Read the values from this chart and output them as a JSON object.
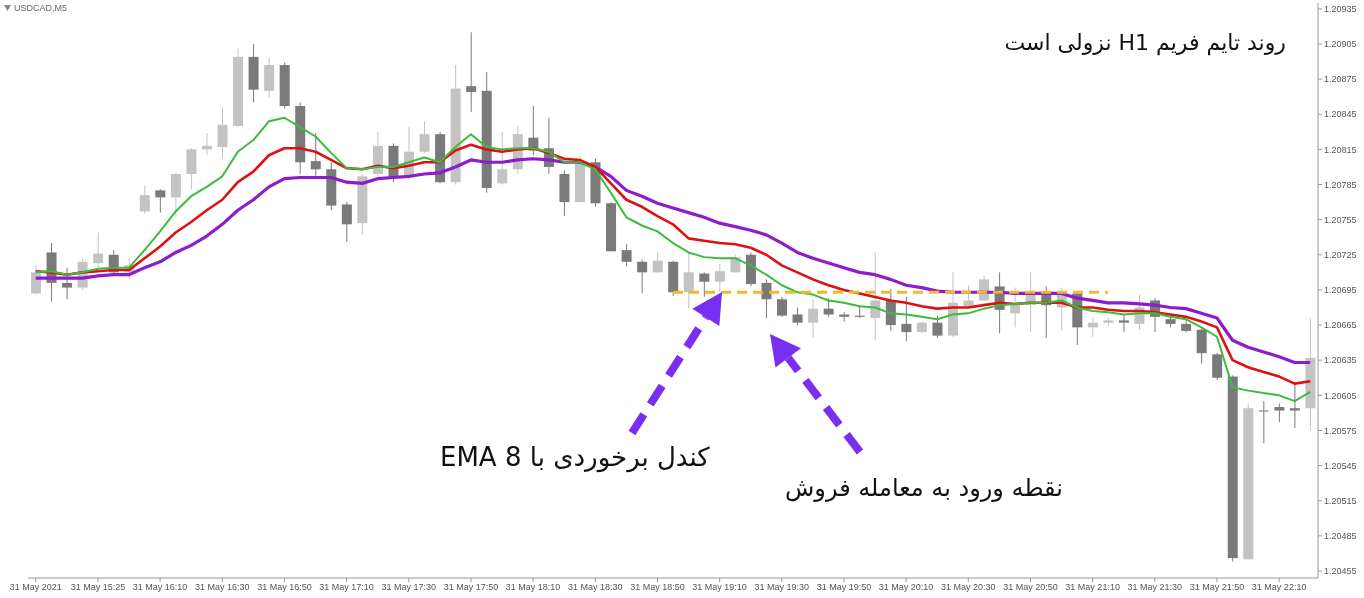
{
  "chart_data": {
    "type": "candlestick",
    "title": "USDCAD,M5",
    "categories": [
      "31 May 2021",
      null,
      null,
      null,
      "31 May 15:25",
      null,
      null,
      null,
      "31 May 16:10",
      null,
      null,
      null,
      "31 May 16:30",
      null,
      null,
      null,
      "31 May 16:50",
      null,
      null,
      null,
      "31 May 17:10",
      null,
      null,
      null,
      "31 May 17:30",
      null,
      null,
      null,
      "31 May 17:50",
      null,
      null,
      null,
      "31 May 18:10",
      null,
      null,
      null,
      "31 May 18:30",
      null,
      null,
      null,
      "31 May 18:50",
      null,
      null,
      null,
      "31 May 19:10",
      null,
      null,
      null,
      "31 May 19:30",
      null,
      null,
      null,
      "31 May 19:50",
      null,
      null,
      null,
      "31 May 20:10",
      null,
      null,
      null,
      "31 May 20:30",
      null,
      null,
      null,
      "31 May 20:50",
      null,
      null,
      null,
      "31 May 21:10",
      null,
      null,
      null,
      "31 May 21:30",
      null,
      null,
      null,
      "31 May 21:50",
      null,
      null,
      null,
      "31 May 22:10",
      null,
      null
    ],
    "ohlc": [
      [
        1.20692,
        1.20716,
        1.20691,
        1.2071
      ],
      [
        1.20727,
        1.20735,
        1.20685,
        1.20701
      ],
      [
        1.20701,
        1.20714,
        1.20687,
        1.20697
      ],
      [
        1.20697,
        1.20722,
        1.20695,
        1.20719
      ],
      [
        1.20718,
        1.20744,
        1.20714,
        1.20726
      ],
      [
        1.20725,
        1.20729,
        1.20708,
        1.2071
      ],
      [
        1.2071,
        1.20722,
        1.20704,
        1.20716
      ],
      [
        1.20762,
        1.20784,
        1.2076,
        1.20776
      ],
      [
        1.2078,
        1.20781,
        1.20761,
        1.20774
      ],
      [
        1.20774,
        1.20795,
        1.20757,
        1.20794
      ],
      [
        1.20794,
        1.20816,
        1.20781,
        1.20815
      ],
      [
        1.20815,
        1.20829,
        1.2081,
        1.20818
      ],
      [
        1.20817,
        1.20851,
        1.20807,
        1.20836
      ],
      [
        1.20835,
        1.20901,
        1.20834,
        1.20894
      ],
      [
        1.20894,
        1.20905,
        1.20855,
        1.20866
      ],
      [
        1.20865,
        1.20893,
        1.20859,
        1.20887
      ],
      [
        1.20887,
        1.20889,
        1.2085,
        1.20852
      ],
      [
        1.20852,
        1.20855,
        1.20794,
        1.20804
      ],
      [
        1.20805,
        1.20829,
        1.20792,
        1.20798
      ],
      [
        1.20798,
        1.20804,
        1.20763,
        1.20767
      ],
      [
        1.20768,
        1.2077,
        1.20736,
        1.20751
      ],
      [
        1.20752,
        1.20794,
        1.20742,
        1.20792
      ],
      [
        1.20794,
        1.2083,
        1.20792,
        1.20818
      ],
      [
        1.20818,
        1.2082,
        1.20787,
        1.20791
      ],
      [
        1.20792,
        1.20834,
        1.20789,
        1.20813
      ],
      [
        1.20813,
        1.20839,
        1.20812,
        1.20828
      ],
      [
        1.20828,
        1.2083,
        1.20786,
        1.20787
      ],
      [
        1.20787,
        1.20887,
        1.20785,
        1.20867
      ],
      [
        1.20869,
        1.20915,
        1.20847,
        1.20864
      ],
      [
        1.20865,
        1.20881,
        1.20778,
        1.20782
      ],
      [
        1.20786,
        1.2083,
        1.20785,
        1.20798
      ],
      [
        1.20798,
        1.20835,
        1.20794,
        1.20828
      ],
      [
        1.20825,
        1.20852,
        1.2081,
        1.20814
      ],
      [
        1.20816,
        1.20842,
        1.20794,
        1.208
      ],
      [
        1.20794,
        1.20797,
        1.20758,
        1.2077
      ],
      [
        1.2077,
        1.20809,
        1.2077,
        1.20804
      ],
      [
        1.20804,
        1.20807,
        1.20766,
        1.20769
      ],
      [
        1.20769,
        1.2077,
        1.20728,
        1.20728
      ],
      [
        1.20729,
        1.20734,
        1.20715,
        1.20719
      ],
      [
        1.20719,
        1.20721,
        1.20692,
        1.2071
      ],
      [
        1.2071,
        1.20727,
        1.2071,
        1.2072
      ],
      [
        1.20719,
        1.2072,
        1.2069,
        1.20693
      ],
      [
        1.20693,
        1.20727,
        1.20679,
        1.2071
      ],
      [
        1.20709,
        1.2071,
        1.20689,
        1.20702
      ],
      [
        1.20702,
        1.20717,
        1.20693,
        1.20711
      ],
      [
        1.2071,
        1.20725,
        1.2071,
        1.20723
      ],
      [
        1.20725,
        1.20727,
        1.20698,
        1.207
      ],
      [
        1.20701,
        1.20704,
        1.20671,
        1.20687
      ],
      [
        1.20687,
        1.20689,
        1.20672,
        1.20673
      ],
      [
        1.20674,
        1.2068,
        1.20665,
        1.20667
      ],
      [
        1.20667,
        1.20687,
        1.20654,
        1.20679
      ],
      [
        1.20679,
        1.20688,
        1.20672,
        1.20674
      ],
      [
        1.20674,
        1.20676,
        1.20668,
        1.20672
      ],
      [
        1.20673,
        1.20682,
        1.20671,
        1.20672
      ],
      [
        1.20671,
        1.20727,
        1.20652,
        1.20686
      ],
      [
        1.20686,
        1.20696,
        1.2066,
        1.20665
      ],
      [
        1.20666,
        1.20689,
        1.20651,
        1.20659
      ],
      [
        1.20659,
        1.20668,
        1.20658,
        1.20667
      ],
      [
        1.20667,
        1.20673,
        1.20654,
        1.20656
      ],
      [
        1.20656,
        1.2071,
        1.20655,
        1.20684
      ],
      [
        1.20681,
        1.20699,
        1.2068,
        1.20686
      ],
      [
        1.20686,
        1.20707,
        1.20685,
        1.20704
      ],
      [
        1.20698,
        1.2071,
        1.20658,
        1.20678
      ],
      [
        1.20675,
        1.20697,
        1.20663,
        1.20682
      ],
      [
        1.20682,
        1.2071,
        1.20659,
        1.20692
      ],
      [
        1.20692,
        1.20698,
        1.20654,
        1.20682
      ],
      [
        1.2068,
        1.20697,
        1.2066,
        1.20692
      ],
      [
        1.20692,
        1.20694,
        1.20648,
        1.20663
      ],
      [
        1.20663,
        1.20671,
        1.20655,
        1.20667
      ],
      [
        1.20667,
        1.20671,
        1.20664,
        1.20669
      ],
      [
        1.20669,
        1.20674,
        1.20659,
        1.20667
      ],
      [
        1.20666,
        1.20691,
        1.20661,
        1.2068
      ],
      [
        1.20686,
        1.20688,
        1.20659,
        1.20672
      ],
      [
        1.2067,
        1.20673,
        1.20663,
        1.20666
      ],
      [
        1.20666,
        1.20669,
        1.20659,
        1.2066
      ],
      [
        1.20661,
        1.20662,
        1.20632,
        1.20641
      ],
      [
        1.2064,
        1.20641,
        1.20618,
        1.2062
      ],
      [
        1.20621,
        1.20622,
        1.20463,
        1.20466
      ],
      [
        1.20465,
        1.20598,
        1.20465,
        1.20594
      ],
      [
        1.20592,
        1.206,
        1.20564,
        1.20592
      ],
      [
        1.20595,
        1.20598,
        1.20582,
        1.20592
      ],
      [
        1.20594,
        1.20616,
        1.20577,
        1.20592
      ],
      [
        1.20594,
        1.20671,
        1.20575,
        1.20637
      ]
    ],
    "colors": [
      "#c3c3c3",
      "#7a7a7a",
      "#7a7a7a",
      "#c3c3c3",
      "#c3c3c3",
      "#7a7a7a",
      "#c3c3c3",
      "#c3c3c3",
      "#7a7a7a",
      "#c3c3c3",
      "#c3c3c3",
      "#c3c3c3",
      "#c3c3c3",
      "#c3c3c3",
      "#7a7a7a",
      "#c3c3c3",
      "#7a7a7a",
      "#7a7a7a",
      "#7a7a7a",
      "#7a7a7a",
      "#7a7a7a",
      "#c3c3c3",
      "#c3c3c3",
      "#7a7a7a",
      "#c3c3c3",
      "#c3c3c3",
      "#7a7a7a",
      "#c3c3c3",
      "#7a7a7a",
      "#7a7a7a",
      "#c3c3c3",
      "#c3c3c3",
      "#7a7a7a",
      "#7a7a7a",
      "#7a7a7a",
      "#c3c3c3",
      "#7a7a7a",
      "#7a7a7a",
      "#7a7a7a",
      "#7a7a7a",
      "#c3c3c3",
      "#7a7a7a",
      "#c3c3c3",
      "#7a7a7a",
      "#c3c3c3",
      "#c3c3c3",
      "#7a7a7a",
      "#7a7a7a",
      "#7a7a7a",
      "#7a7a7a",
      "#c3c3c3",
      "#7a7a7a",
      "#7a7a7a",
      "#7a7a7a",
      "#c3c3c3",
      "#7a7a7a",
      "#7a7a7a",
      "#c3c3c3",
      "#7a7a7a",
      "#c3c3c3",
      "#c3c3c3",
      "#c3c3c3",
      "#7a7a7a",
      "#c3c3c3",
      "#c3c3c3",
      "#7a7a7a",
      "#c3c3c3",
      "#7a7a7a",
      "#c3c3c3",
      "#c3c3c3",
      "#7a7a7a",
      "#c3c3c3",
      "#7a7a7a",
      "#7a7a7a",
      "#7a7a7a",
      "#7a7a7a",
      "#7a7a7a",
      "#7a7a7a",
      "#c3c3c3",
      "#7a7a7a",
      "#7a7a7a",
      "#7a7a7a",
      "#c3c3c3"
    ],
    "series": [
      {
        "type": "line",
        "color": "#8c1ccc",
        "line_style": "solid",
        "values": [
          1.20705,
          1.20705,
          1.20705,
          1.20705,
          1.20707,
          1.20708,
          1.20708,
          1.20714,
          1.20719,
          1.20727,
          1.20733,
          1.20741,
          1.20751,
          1.20763,
          1.20772,
          1.20783,
          1.2079,
          1.20791,
          1.20791,
          1.20791,
          1.20787,
          1.20786,
          1.2079,
          1.20791,
          1.20792,
          1.20794,
          1.20795,
          1.208,
          1.20806,
          1.20804,
          1.20804,
          1.20806,
          1.20807,
          1.20806,
          1.20804,
          1.20804,
          1.208,
          1.20792,
          1.2078,
          1.20775,
          1.20769,
          1.20765,
          1.20761,
          1.20757,
          1.20752,
          1.20749,
          1.20746,
          1.20742,
          1.20735,
          1.20727,
          1.20722,
          1.20718,
          1.20714,
          1.2071,
          1.20708,
          1.20704,
          1.20699,
          1.20697,
          1.20694,
          1.20693,
          1.20693,
          1.20693,
          1.20693,
          1.20692,
          1.20692,
          1.20692,
          1.20692,
          1.20688,
          1.20686,
          1.20684,
          1.20684,
          1.20683,
          1.20682,
          1.2068,
          1.20679,
          1.20675,
          1.20671,
          1.20652,
          1.20646,
          1.20642,
          1.20638,
          1.20633,
          1.20633
        ]
      },
      {
        "type": "line",
        "color": "#dd1111",
        "line_style": "solid",
        "values": [
          1.20711,
          1.2071,
          1.20708,
          1.2071,
          1.20711,
          1.20712,
          1.20712,
          1.20722,
          1.20732,
          1.20744,
          1.20753,
          1.20763,
          1.20772,
          1.20787,
          1.20796,
          1.2081,
          1.20816,
          1.20816,
          1.20813,
          1.20806,
          1.20799,
          1.20798,
          1.20801,
          1.20799,
          1.20801,
          1.20804,
          1.20804,
          1.20814,
          1.20819,
          1.20815,
          1.20813,
          1.20815,
          1.20816,
          1.20812,
          1.20807,
          1.20806,
          1.208,
          1.20786,
          1.20772,
          1.20766,
          1.20758,
          1.20751,
          1.20739,
          1.20737,
          1.20735,
          1.20734,
          1.20731,
          1.20725,
          1.20716,
          1.2071,
          1.20704,
          1.20699,
          1.20695,
          1.20692,
          1.20689,
          1.20686,
          1.20684,
          1.20681,
          1.20679,
          1.2068,
          1.2068,
          1.20682,
          1.20684,
          1.20683,
          1.20684,
          1.20684,
          1.20684,
          1.2068,
          1.2068,
          1.20678,
          1.20677,
          1.20677,
          1.20676,
          1.20674,
          1.20672,
          1.20668,
          1.20663,
          1.20635,
          1.20629,
          1.20625,
          1.20621,
          1.20615,
          1.20617
        ]
      },
      {
        "type": "line",
        "color": "#3dbb3d",
        "line_style": "solid",
        "values": [
          1.2071,
          1.20711,
          1.20708,
          1.2071,
          1.20713,
          1.20714,
          1.20714,
          1.20729,
          1.20745,
          1.20762,
          1.20775,
          1.20783,
          1.20792,
          1.20813,
          1.20823,
          1.20839,
          1.20842,
          1.20834,
          1.20826,
          1.20812,
          1.20799,
          1.20798,
          1.208,
          1.208,
          1.20804,
          1.20808,
          1.20804,
          1.20817,
          1.20828,
          1.20817,
          1.20815,
          1.20816,
          1.20816,
          1.20813,
          1.20804,
          1.20804,
          1.20798,
          1.20778,
          1.20757,
          1.2075,
          1.20745,
          1.20735,
          1.20727,
          1.20723,
          1.20722,
          1.20722,
          1.20716,
          1.20708,
          1.20699,
          1.20693,
          1.20691,
          1.20686,
          1.20684,
          1.20681,
          1.2068,
          1.20675,
          1.20674,
          1.20672,
          1.2067,
          1.20674,
          1.20675,
          1.20679,
          1.20682,
          1.20683,
          1.20684,
          1.20684,
          1.20686,
          1.2068,
          1.20677,
          1.20676,
          1.20674,
          1.20675,
          1.20675,
          1.20672,
          1.2067,
          1.20663,
          1.20655,
          1.20612,
          1.20609,
          1.20607,
          1.20605,
          1.206,
          1.20608
        ]
      },
      {
        "type": "line",
        "color": "#f2b632",
        "line_style": "dashed",
        "values": [
          null,
          null,
          null,
          null,
          null,
          null,
          null,
          null,
          null,
          null,
          null,
          null,
          null,
          null,
          null,
          null,
          null,
          null,
          null,
          null,
          null,
          null,
          null,
          null,
          null,
          null,
          null,
          null,
          null,
          null,
          null,
          null,
          null,
          null,
          null,
          null,
          null,
          null,
          null,
          null,
          null,
          1.20693,
          1.20693,
          1.20693,
          1.20693,
          1.20693,
          1.20693,
          1.20693,
          1.20693,
          1.20693,
          1.20693,
          1.20693,
          1.20693,
          1.20693,
          1.20693,
          1.20693,
          1.20693,
          1.20693,
          1.20693,
          1.20693,
          1.20693,
          1.20693,
          1.20693,
          1.20693,
          1.20693,
          1.20693,
          1.20693,
          1.20693,
          1.20693,
          1.20693,
          null,
          null,
          null,
          null,
          null,
          null,
          null,
          null,
          null,
          null,
          null,
          null,
          null
        ]
      }
    ],
    "ylim": [
      1.20449,
      1.2094
    ],
    "yticks": [
      1.20935,
      1.20905,
      1.20875,
      1.20845,
      1.20815,
      1.20785,
      1.20755,
      1.20725,
      1.20695,
      1.20665,
      1.20635,
      1.20605,
      1.20575,
      1.20545,
      1.20515,
      1.20485,
      1.20455
    ],
    "annotations": [
      "روند تایم فریم H1 نزولی است",
      "کندل برخوردی با EMA 8",
      "نقطه ورود به معامله فروش"
    ]
  }
}
